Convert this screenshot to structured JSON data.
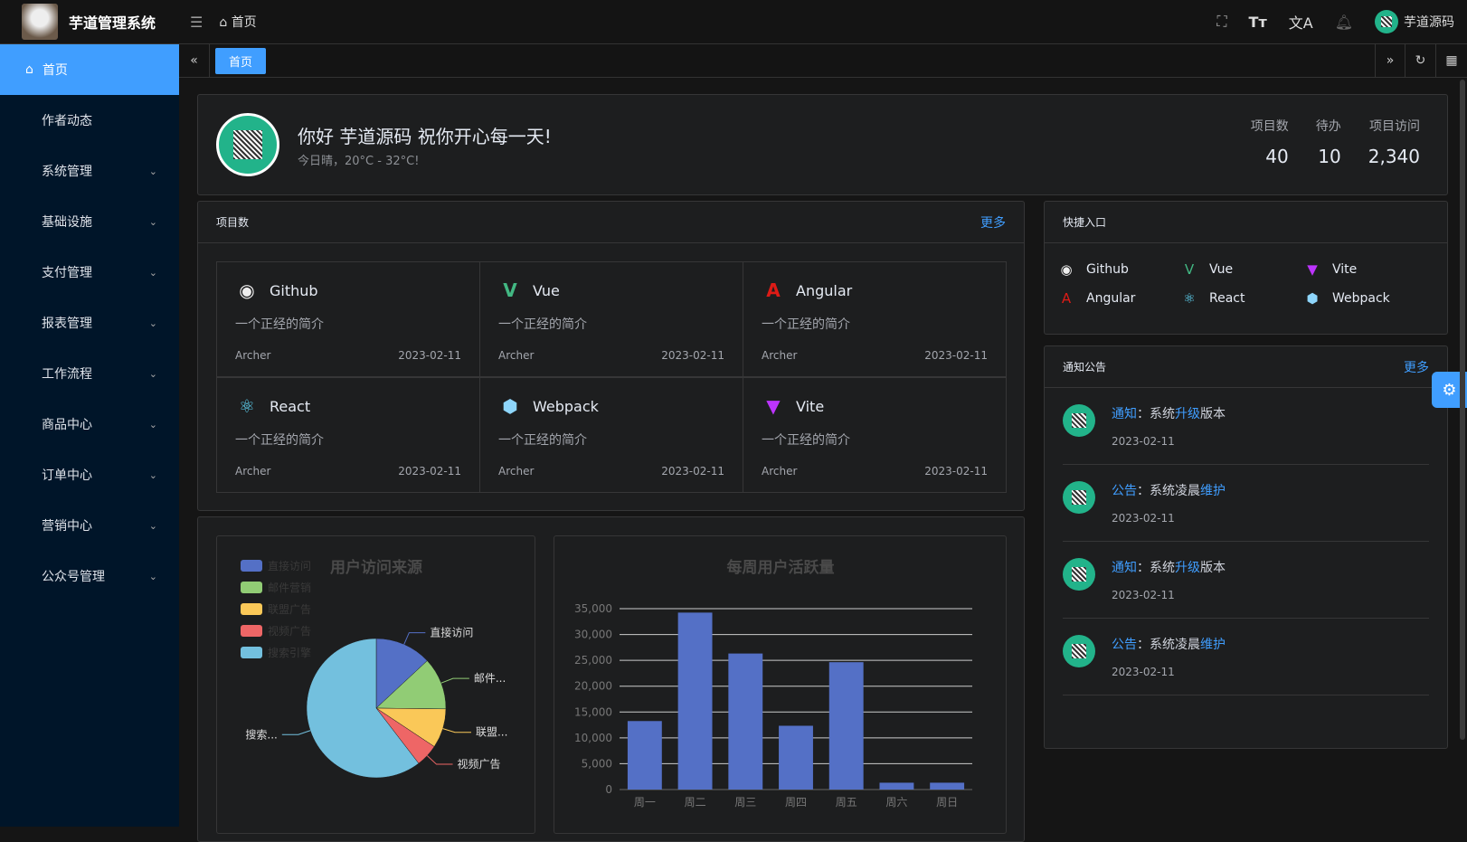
{
  "header": {
    "app_title": "芋道管理系统",
    "breadcrumb": "首页",
    "username": "芋道源码"
  },
  "sidebar": {
    "items": [
      {
        "label": "首页",
        "active": true
      },
      {
        "label": "作者动态"
      },
      {
        "label": "系统管理",
        "submenu": true
      },
      {
        "label": "基础设施",
        "submenu": true
      },
      {
        "label": "支付管理",
        "submenu": true
      },
      {
        "label": "报表管理",
        "submenu": true
      },
      {
        "label": "工作流程",
        "submenu": true
      },
      {
        "label": "商品中心",
        "submenu": true
      },
      {
        "label": "订单中心",
        "submenu": true
      },
      {
        "label": "营销中心",
        "submenu": true
      },
      {
        "label": "公众号管理",
        "submenu": true
      }
    ]
  },
  "tabs": [
    {
      "label": "首页",
      "active": true
    }
  ],
  "welcome": {
    "greeting": "你好 芋道源码 祝你开心每一天!",
    "weather": "今日晴，20°C - 32°C!",
    "stats": [
      {
        "label": "项目数",
        "value": "40"
      },
      {
        "label": "待办",
        "value": "10"
      },
      {
        "label": "项目访问",
        "value": "2,340"
      }
    ]
  },
  "projects": {
    "title": "项目数",
    "more": "更多",
    "items": [
      {
        "name": "Github",
        "icon": "github-icon",
        "desc": "一个正经的简介",
        "author": "Archer",
        "date": "2023-02-11"
      },
      {
        "name": "Vue",
        "icon": "vue-icon",
        "desc": "一个正经的简介",
        "author": "Archer",
        "date": "2023-02-11"
      },
      {
        "name": "Angular",
        "icon": "angular-icon",
        "desc": "一个正经的简介",
        "author": "Archer",
        "date": "2023-02-11"
      },
      {
        "name": "React",
        "icon": "react-icon",
        "desc": "一个正经的简介",
        "author": "Archer",
        "date": "2023-02-11"
      },
      {
        "name": "Webpack",
        "icon": "webpack-icon",
        "desc": "一个正经的简介",
        "author": "Archer",
        "date": "2023-02-11"
      },
      {
        "name": "Vite",
        "icon": "vite-icon",
        "desc": "一个正经的简介",
        "author": "Archer",
        "date": "2023-02-11"
      }
    ]
  },
  "shortcuts": {
    "title": "快捷入口",
    "items": [
      "Github",
      "Vue",
      "Vite",
      "Angular",
      "React",
      "Webpack"
    ]
  },
  "notices": {
    "title": "通知公告",
    "more": "更多",
    "items": [
      {
        "type": "通知",
        "text_a": "：系统",
        "hl": "升级",
        "text_b": "版本",
        "date": "2023-02-11"
      },
      {
        "type": "公告",
        "text_a": "：系统凌晨",
        "hl": "维护",
        "text_b": "",
        "date": "2023-02-11"
      },
      {
        "type": "通知",
        "text_a": "：系统",
        "hl": "升级",
        "text_b": "版本",
        "date": "2023-02-11"
      },
      {
        "type": "公告",
        "text_a": "：系统凌晨",
        "hl": "维护",
        "text_b": "",
        "date": "2023-02-11"
      }
    ]
  },
  "chart_data": [
    {
      "type": "pie",
      "title": "用户访问来源",
      "legend_position": "top-left",
      "slices": [
        {
          "name": "直接访问",
          "value": 335,
          "color": "#5470c6",
          "label": "直接访问"
        },
        {
          "name": "邮件营销",
          "value": 310,
          "color": "#91cc75",
          "label": "邮件..."
        },
        {
          "name": "联盟广告",
          "value": 234,
          "color": "#fac858",
          "label": "联盟..."
        },
        {
          "name": "视频广告",
          "value": 135,
          "color": "#ee6666",
          "label": "视频广告"
        },
        {
          "name": "搜索引擎",
          "value": 1548,
          "color": "#73c0de",
          "label": "搜索..."
        }
      ]
    },
    {
      "type": "bar",
      "title": "每周用户活跃量",
      "categories": [
        "周一",
        "周二",
        "周三",
        "周四",
        "周五",
        "周六",
        "周日"
      ],
      "values": [
        13253,
        34235,
        26321,
        12340,
        24643,
        1322,
        1324
      ],
      "ylim": [
        0,
        35000
      ],
      "yticks": [
        "0",
        "5,000",
        "10,000",
        "15,000",
        "20,000",
        "25,000",
        "30,000",
        "35,000"
      ],
      "grid": true,
      "color": "#5470c6"
    }
  ]
}
